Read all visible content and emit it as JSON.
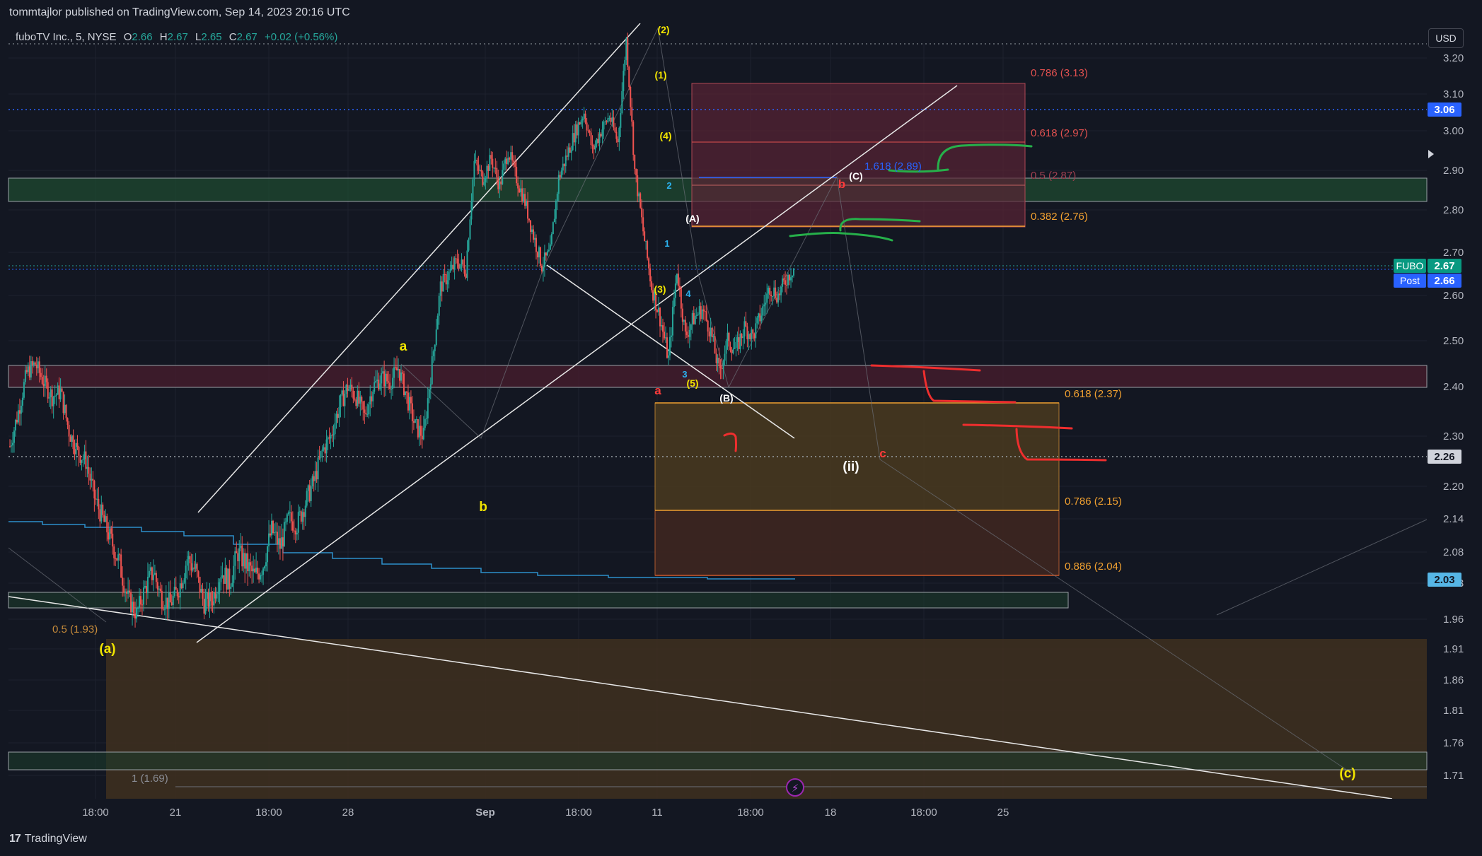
{
  "header": {
    "published": "tommtajlor published on TradingView.com, Sep 14, 2023 20:16 UTC"
  },
  "legend": {
    "symbol": "fuboTV Inc., 5, NYSE",
    "o_label": "O",
    "o": "2.66",
    "h_label": "H",
    "h": "2.67",
    "l_label": "L",
    "l": "2.65",
    "c_label": "C",
    "c": "2.67",
    "change": "+0.02 (+0.56%)"
  },
  "currency": "USD",
  "footer": {
    "brand": "TradingView"
  },
  "colors": {
    "background": "#131722",
    "up": "#26a69a",
    "down": "#ef5350",
    "grid": "#1e222d",
    "axis_text": "#b2b5be",
    "marker_fubo": "#089981",
    "marker_post": "#2962ff",
    "marker_dotted": "#2962ff",
    "fib_red": "#e0504f",
    "fib_orange": "#f0a030",
    "label_yellow": "#f2e500",
    "label_red": "#ff3b3b",
    "label_blue": "#2196f3",
    "draw_green": "#26b04a",
    "draw_red": "#ee2e2e",
    "ma_blue": "#2d8fc9"
  },
  "chart_data": {
    "type": "candlestick",
    "ylim": [
      1.66,
      3.26
    ],
    "y_ticks": [
      "3.20",
      "3.10",
      "3.00",
      "2.90",
      "2.80",
      "2.70",
      "2.60",
      "2.50",
      "2.40",
      "2.30",
      "2.20",
      "2.14",
      "2.08",
      "2.03",
      "1.96",
      "1.91",
      "1.86",
      "1.81",
      "1.76",
      "1.71"
    ],
    "x_ticks": [
      "18:00",
      "21",
      "18:00",
      "28",
      "Sep",
      "18:00",
      "11",
      "18:00",
      "18",
      "18:00",
      "25"
    ],
    "price_markers": [
      {
        "label": "",
        "value": "3.06",
        "kind": "dotted"
      },
      {
        "label": "FUBO",
        "value": "2.67",
        "kind": "fubo"
      },
      {
        "label": "Post",
        "value": "2.66",
        "kind": "post"
      },
      {
        "label": "",
        "value": "2.26",
        "kind": "gray"
      },
      {
        "label": "",
        "value": "2.03",
        "kind": "ma"
      }
    ],
    "fib_levels": [
      {
        "text": "0.786 (3.13)",
        "value": 3.13,
        "color": "red"
      },
      {
        "text": "0.618 (2.97)",
        "value": 2.97,
        "color": "red"
      },
      {
        "text": "0.5 (2.87)",
        "value": 2.87,
        "color": "red"
      },
      {
        "text": "0.382 (2.76)",
        "value": 2.76,
        "color": "orange"
      },
      {
        "text": "1.618 (2.89)",
        "value": 2.89,
        "color": "blue"
      },
      {
        "text": "0.618 (2.37)",
        "value": 2.37,
        "color": "orange"
      },
      {
        "text": "0.786 (2.15)",
        "value": 2.15,
        "color": "orange"
      },
      {
        "text": "0.886 (2.04)",
        "value": 2.04,
        "color": "orange"
      },
      {
        "text": "0.5 (1.93)",
        "value": 1.93,
        "color": "orange"
      },
      {
        "text": "1 (1.69)",
        "value": 1.69,
        "color": "gray"
      }
    ],
    "wave_labels": [
      {
        "text": "(2)",
        "color": "yellow"
      },
      {
        "text": "(1)",
        "color": "yellow"
      },
      {
        "text": "(4)",
        "color": "yellow"
      },
      {
        "text": "(3)",
        "color": "yellow"
      },
      {
        "text": "(5)",
        "color": "yellow"
      },
      {
        "text": "(A)",
        "color": "white"
      },
      {
        "text": "(B)",
        "color": "white"
      },
      {
        "text": "(C)",
        "color": "white"
      },
      {
        "text": "(ii)",
        "color": "white"
      },
      {
        "text": "a",
        "color": "yellow"
      },
      {
        "text": "b",
        "color": "yellow"
      },
      {
        "text": "(a)",
        "color": "yellow"
      },
      {
        "text": "(c)",
        "color": "yellow"
      },
      {
        "text": "a",
        "color": "red"
      },
      {
        "text": "b",
        "color": "red"
      },
      {
        "text": "c",
        "color": "red"
      },
      {
        "text": "1",
        "color": "blue"
      },
      {
        "text": "2",
        "color": "blue"
      },
      {
        "text": "3",
        "color": "blue"
      },
      {
        "text": "4",
        "color": "blue"
      }
    ],
    "price_path": [
      2.28,
      2.35,
      2.43,
      2.45,
      2.41,
      2.38,
      2.39,
      2.31,
      2.27,
      2.25,
      2.18,
      2.14,
      2.1,
      2.06,
      2.0,
      1.97,
      2.02,
      2.05,
      2.0,
      1.99,
      2.02,
      2.07,
      2.05,
      1.99,
      2.0,
      2.05,
      2.03,
      2.08,
      2.06,
      2.04,
      2.06,
      2.12,
      2.09,
      2.14,
      2.13,
      2.17,
      2.21,
      2.27,
      2.3,
      2.36,
      2.4,
      2.38,
      2.34,
      2.4,
      2.42,
      2.41,
      2.44,
      2.38,
      2.32,
      2.3,
      2.45,
      2.62,
      2.65,
      2.68,
      2.66,
      2.92,
      2.88,
      2.93,
      2.86,
      2.95,
      2.88,
      2.82,
      2.74,
      2.67,
      2.7,
      2.88,
      2.94,
      3.0,
      3.05,
      2.95,
      3.0,
      3.04,
      2.97,
      3.25,
      2.9,
      2.75,
      2.62,
      2.55,
      2.46,
      2.66,
      2.51,
      2.55,
      2.57,
      2.52,
      2.43,
      2.5,
      2.48,
      2.53,
      2.51,
      2.56,
      2.62,
      2.6,
      2.64,
      2.67
    ]
  }
}
